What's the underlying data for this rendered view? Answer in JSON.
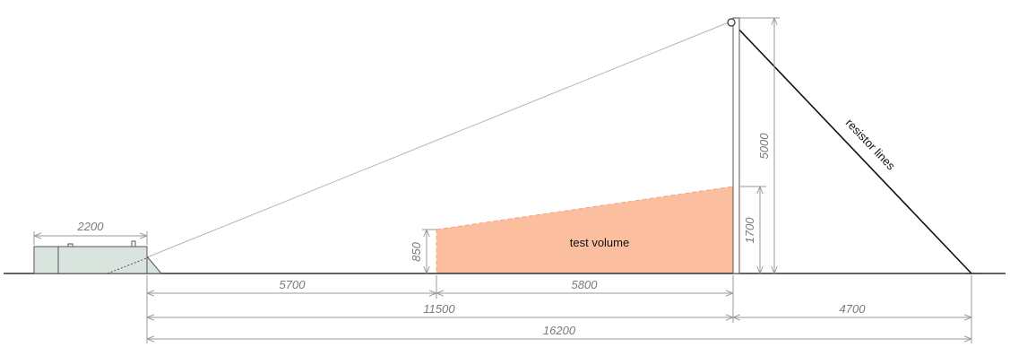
{
  "colors": {
    "ground": "#333333",
    "dimension": "#9a9a9a",
    "guy_wire": "#b5b5b5",
    "resistor_line": "#111111",
    "test_volume_fill": "#fbbfa0",
    "test_volume_edge": "#f3a484",
    "vehicle_fill": "#d9e4df",
    "vehicle_edge": "#555555",
    "mast": "#555555"
  },
  "labels": {
    "test_volume": "test volume",
    "resistor_lines": "resistor lines"
  },
  "dimensions": {
    "vehicle_length": "2200",
    "test_volume_height_near": "850",
    "test_volume_height_far": "1700",
    "mast_height": "5000",
    "vehicle_to_test_volume": "5700",
    "test_volume_length": "5800",
    "vehicle_to_mast": "11500",
    "mast_to_anchor": "4700",
    "total_length": "16200"
  }
}
